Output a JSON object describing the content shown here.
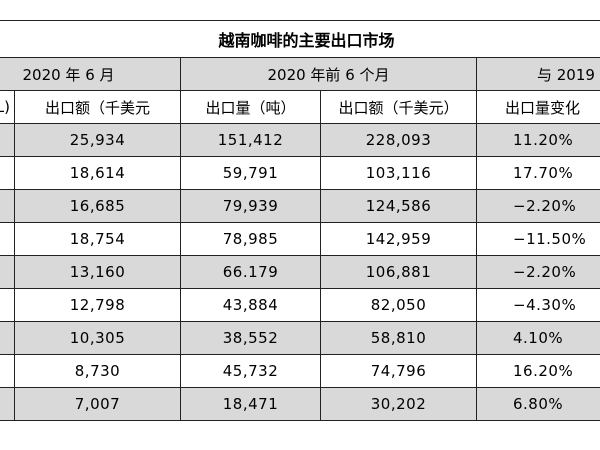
{
  "title": "越南咖啡的主要出口市场",
  "groups": {
    "jun": "2020 年 6 月",
    "h1": "2020 年前 6 个月",
    "compare": "与 2019"
  },
  "headers": {
    "first": "L)",
    "jun_value": "出口额（千美元",
    "h1_volume": "出口量（吨）",
    "h1_value": "出口额（千美元）",
    "change": "出口量变化"
  },
  "rows": [
    [
      "25,934",
      "151,412",
      "228,093",
      "11.20%"
    ],
    [
      "18,614",
      "59,791",
      "103,116",
      "17.70%"
    ],
    [
      "16,685",
      "79,939",
      "124,586",
      "−2.20%"
    ],
    [
      "18,754",
      "78,985",
      "142,959",
      "−11.50%"
    ],
    [
      "13,160",
      "66.179",
      "106,881",
      "−2.20%"
    ],
    [
      "12,798",
      "43,884",
      "82,050",
      "−4.30%"
    ],
    [
      "10,305",
      "38,552",
      "58,810",
      "4.10%"
    ],
    [
      "8,730",
      "45,732",
      "74,796",
      "16.20%"
    ],
    [
      "7,007",
      "18,471",
      "30,202",
      "6.80%"
    ]
  ]
}
